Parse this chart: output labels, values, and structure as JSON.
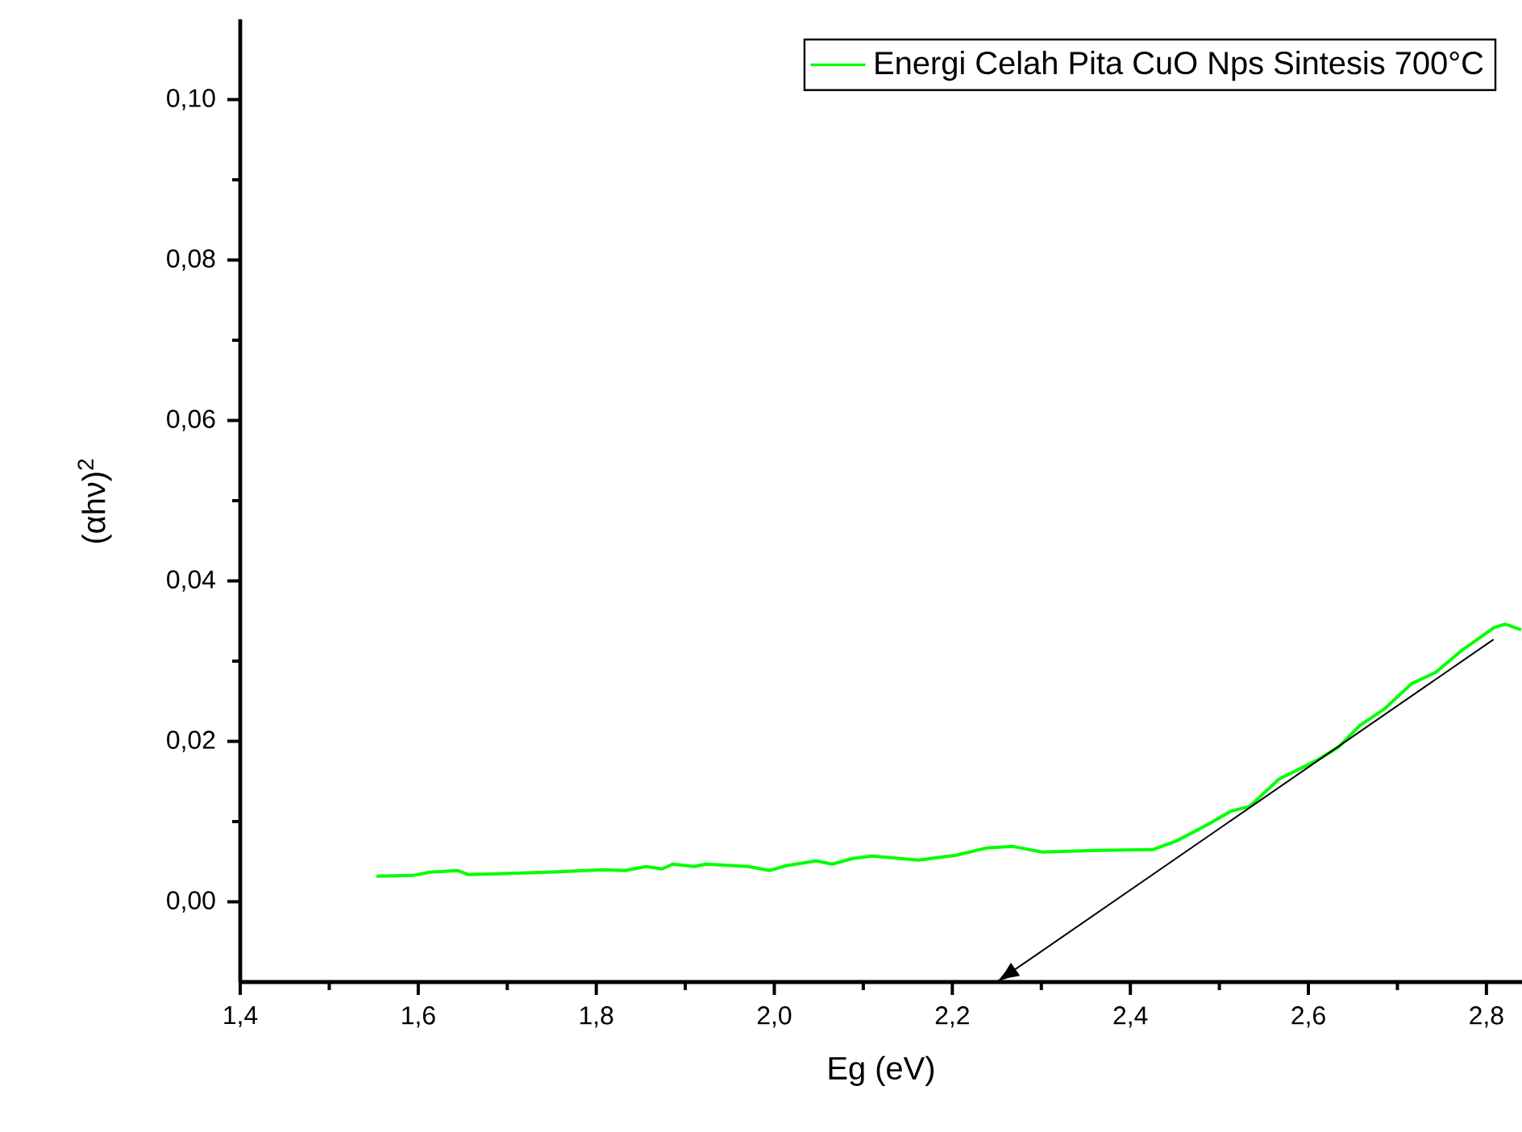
{
  "chart_data": {
    "type": "line",
    "xlabel": "Eg (eV)",
    "ylabel": "(αhν)$^{2}$",
    "xlim": [
      1.4,
      2.84
    ],
    "ylim": [
      -0.01,
      0.11
    ],
    "xticks": [
      {
        "value": 1.4,
        "label": "1,4"
      },
      {
        "value": 1.6,
        "label": "1,6"
      },
      {
        "value": 1.8,
        "label": "1,8"
      },
      {
        "value": 2.0,
        "label": "2,0"
      },
      {
        "value": 2.2,
        "label": "2,2"
      },
      {
        "value": 2.4,
        "label": "2,4"
      },
      {
        "value": 2.6,
        "label": "2,6"
      },
      {
        "value": 2.8,
        "label": "2,8"
      }
    ],
    "yticks": [
      {
        "value": 0.0,
        "label": "0,00"
      },
      {
        "value": 0.02,
        "label": "0,02"
      },
      {
        "value": 0.04,
        "label": "0,04"
      },
      {
        "value": 0.06,
        "label": "0,06"
      },
      {
        "value": 0.08,
        "label": "0,08"
      },
      {
        "value": 0.1,
        "label": "0,10"
      }
    ],
    "legend": "top right",
    "grid": false,
    "marker": "none",
    "line_style": "solid",
    "series": [
      {
        "name": "Energi Celah Pita CuO Nps Sintesis 700°C",
        "color": "#00ff00",
        "x": [
          1.553,
          1.595,
          1.613,
          1.644,
          1.656,
          1.747,
          1.807,
          1.832,
          1.856,
          1.874,
          1.886,
          1.91,
          1.923,
          1.971,
          1.995,
          2.013,
          2.047,
          2.065,
          2.088,
          2.11,
          2.162,
          2.204,
          2.238,
          2.268,
          2.301,
          2.362,
          2.425,
          2.452,
          2.488,
          2.513,
          2.534,
          2.567,
          2.609,
          2.634,
          2.658,
          2.685,
          2.716,
          2.743,
          2.773,
          2.809,
          2.821,
          2.839
        ],
        "values": [
          0.0032,
          0.0033,
          0.0037,
          0.0039,
          0.0034,
          0.0037,
          0.004,
          0.0039,
          0.0044,
          0.0041,
          0.0047,
          0.0044,
          0.0047,
          0.0044,
          0.0039,
          0.0045,
          0.0051,
          0.0047,
          0.0054,
          0.0057,
          0.0052,
          0.0058,
          0.0067,
          0.0069,
          0.0062,
          0.0064,
          0.0065,
          0.0076,
          0.0097,
          0.0113,
          0.0119,
          0.0153,
          0.0176,
          0.0193,
          0.022,
          0.024,
          0.0272,
          0.0286,
          0.0314,
          0.0342,
          0.0346,
          0.0339
        ]
      },
      {
        "type": "line",
        "color": "#000000",
        "x": [
          2.808,
          2.25
        ],
        "values": [
          0.0327,
          -0.01
        ]
      }
    ]
  }
}
